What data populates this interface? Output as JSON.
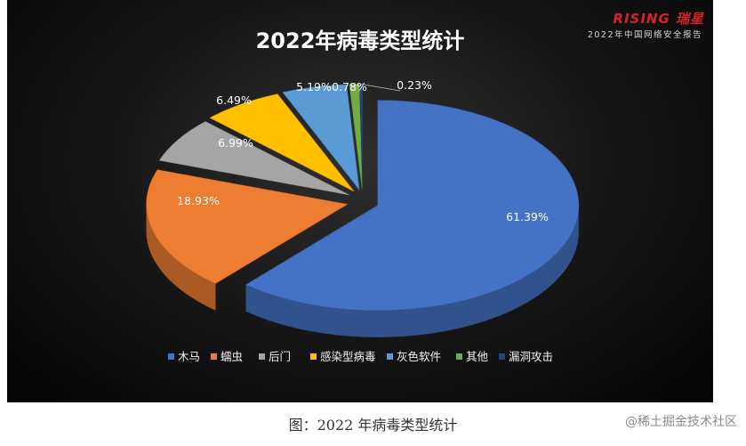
{
  "brand": {
    "logo_text": "RISING 瑞星",
    "subtitle": "2022年中国网络安全报告"
  },
  "caption": "图：2022 年病毒类型统计",
  "site_watermark": "@稀土掘金技术社区",
  "chart_data": {
    "type": "pie",
    "title": "2022年病毒类型统计",
    "categories": [
      "木马",
      "蠕虫",
      "后门",
      "感染型病毒",
      "灰色软件",
      "其他",
      "漏洞攻击"
    ],
    "values": [
      61.39,
      18.93,
      6.99,
      6.49,
      5.19,
      0.78,
      0.23
    ],
    "value_labels": [
      "61.39%",
      "18.93%",
      "6.99%",
      "6.49%",
      "5.19%",
      "0.78%",
      "0.23%"
    ],
    "colors": [
      "#4472c4",
      "#ed7d31",
      "#a5a5a5",
      "#ffc000",
      "#5b9bd5",
      "#70ad47",
      "#264478"
    ],
    "legend_position": "bottom",
    "style": "3d-exploded",
    "grid": false
  }
}
